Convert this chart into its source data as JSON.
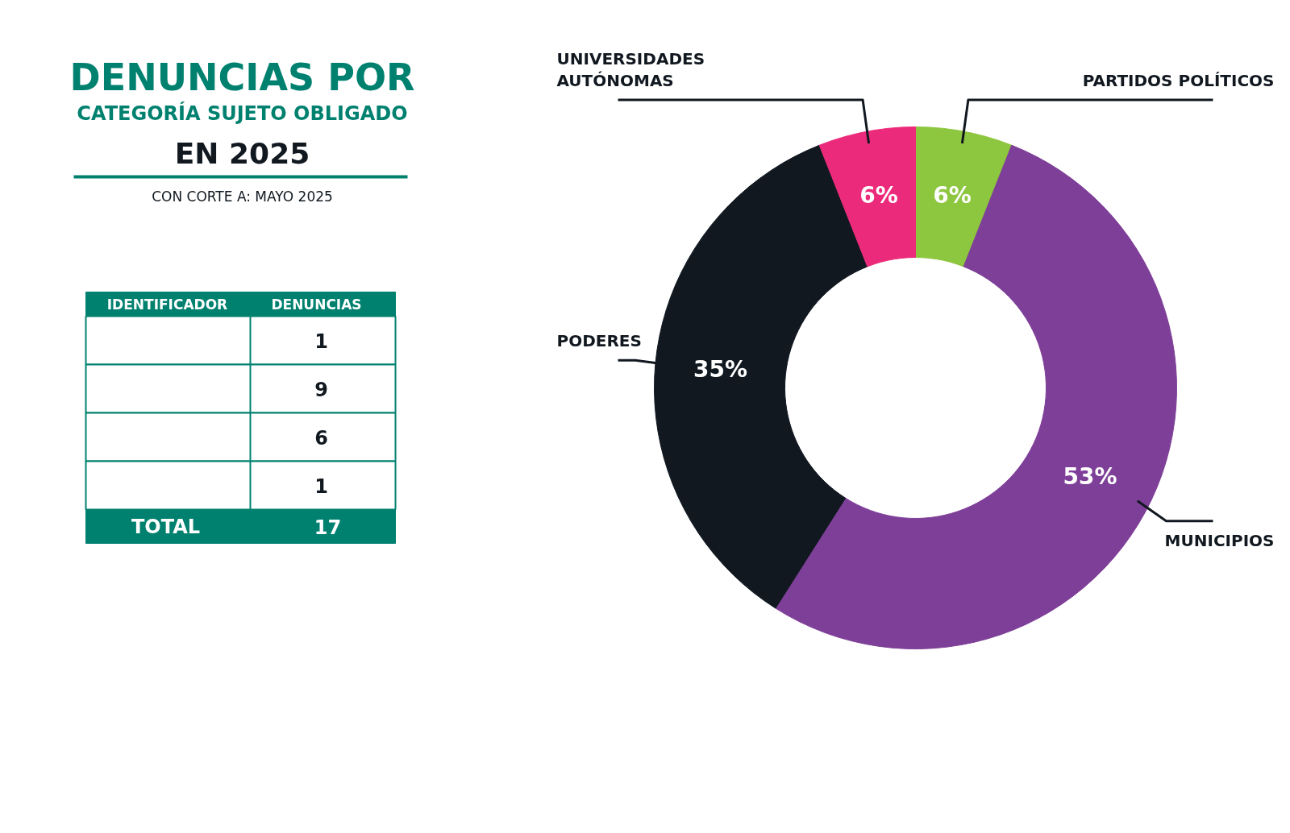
{
  "chart_data": {
    "type": "donut",
    "title": "DENUNCIAS POR\nCATEGORÍA SUJETO OBLIGADO\nEN 2025",
    "subtitle": "CON CORTE A: MAYO 2025",
    "categories": [
      "PARTIDOS POLÍTICOS",
      "MUNICIPIOS",
      "PODERES",
      "UNIVERSIDADES\nAUTÓNOMAS"
    ],
    "values": [
      6,
      53,
      35,
      6
    ],
    "value_labels": [
      "6%",
      "53%",
      "35%",
      "6%"
    ],
    "colors": [
      "#8dc63f",
      "#7e3f98",
      "#111820",
      "#ec2a7b"
    ],
    "annotations": [
      "IDENTIFICADOR",
      "DENUNCIAS",
      "1",
      "9",
      "6",
      "1",
      "TOTAL",
      "17"
    ]
  }
}
